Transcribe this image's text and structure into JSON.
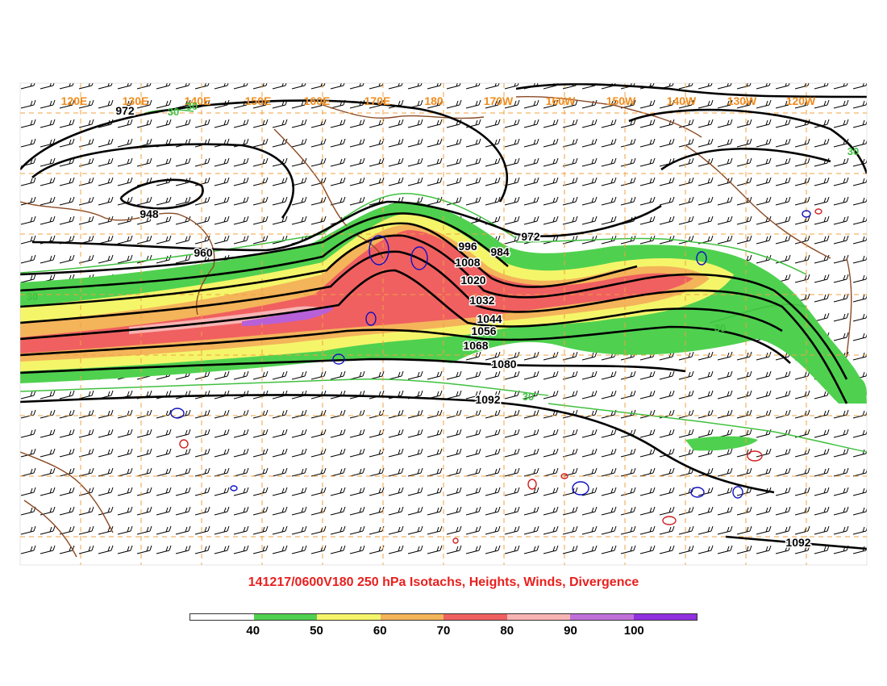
{
  "title": "141217/0600V180 250 hPa Isotachs, Heights, Winds, Divergence",
  "longitude_labels": [
    "120E",
    "130E",
    "140E",
    "150E",
    "160E",
    "170E",
    "180",
    "170W",
    "160W",
    "150W",
    "140W",
    "130W",
    "120W"
  ],
  "height_contour_labels": [
    "972",
    "948",
    "960",
    "996",
    "984",
    "972",
    "1008",
    "1020",
    "1032",
    "1044",
    "1056",
    "1068",
    "1080",
    "1092",
    "1092"
  ],
  "green_contour_labels": [
    "30",
    "30",
    "30",
    "30",
    "30",
    "30"
  ],
  "colorbar": {
    "labels": [
      "40",
      "50",
      "60",
      "70",
      "80",
      "90",
      "100"
    ],
    "colors": [
      "#ffffff",
      "#4fd14f",
      "#f5f56a",
      "#f4b45a",
      "#f06060",
      "#f8b4b4",
      "#c070d8",
      "#9030e0"
    ]
  },
  "colors": {
    "title": "#e8201e",
    "longitude_labels": "#f08c1e",
    "grid": "#f0a040",
    "coastline": "#8b4a25",
    "height_contours": "#000000",
    "isotach_30": "#40c040",
    "divergence_positive": "#1010c0",
    "divergence_negative": "#d02020"
  }
}
